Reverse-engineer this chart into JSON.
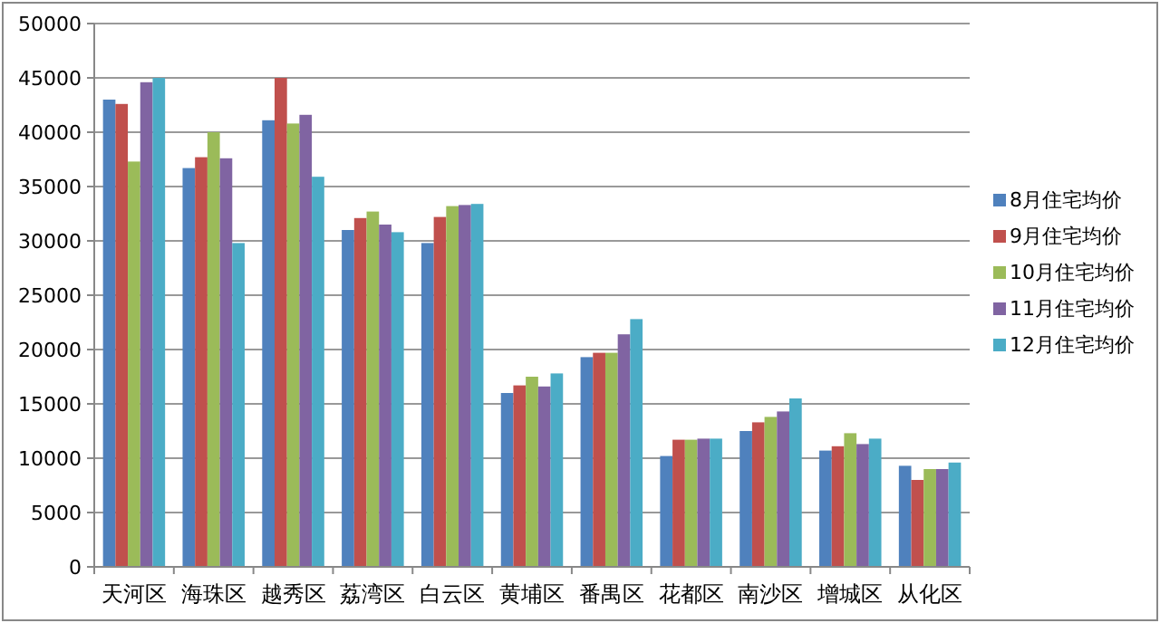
{
  "chart_data": {
    "type": "bar",
    "categories": [
      "天河区",
      "海珠区",
      "越秀区",
      "荔湾区",
      "白云区",
      "黄埔区",
      "番禺区",
      "花都区",
      "南沙区",
      "增城区",
      "从化区"
    ],
    "series": [
      {
        "name": "8月住宅均价",
        "color": "#4f81bd",
        "values": [
          43000,
          36700,
          41100,
          31000,
          29800,
          16000,
          19300,
          10200,
          12500,
          10700,
          9300
        ]
      },
      {
        "name": "9月住宅均价",
        "color": "#c0504d",
        "values": [
          42600,
          37700,
          45000,
          32100,
          32200,
          16700,
          19700,
          11700,
          13300,
          11100,
          8000
        ]
      },
      {
        "name": "10月住宅均价",
        "color": "#9bbb59",
        "values": [
          37300,
          40000,
          40800,
          32700,
          33200,
          17500,
          19700,
          11700,
          13800,
          12300,
          9000
        ]
      },
      {
        "name": "11月住宅均价",
        "color": "#8064a2",
        "values": [
          44600,
          37600,
          41600,
          31500,
          33300,
          16600,
          21400,
          11800,
          14300,
          11300,
          9000
        ]
      },
      {
        "name": "12月住宅均价",
        "color": "#4bacc6",
        "values": [
          45000,
          29800,
          35900,
          30800,
          33400,
          17800,
          22800,
          11800,
          15500,
          11800,
          9600
        ]
      }
    ],
    "ylim": [
      0,
      50000
    ],
    "yticks": [
      0,
      5000,
      10000,
      15000,
      20000,
      25000,
      30000,
      35000,
      40000,
      45000,
      50000
    ],
    "grid": "y",
    "legend": "right"
  }
}
